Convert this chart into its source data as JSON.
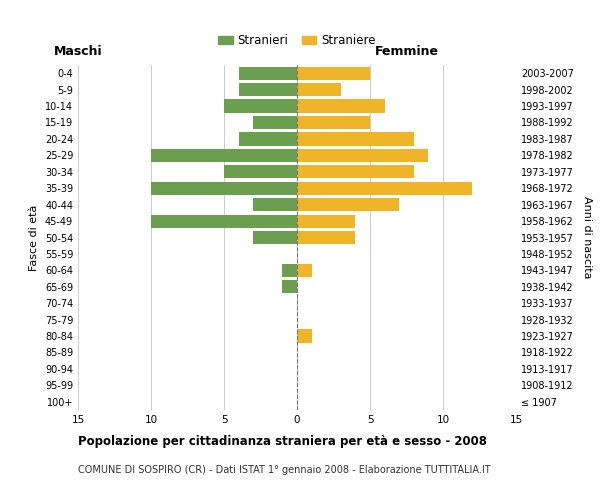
{
  "age_groups": [
    "100+",
    "95-99",
    "90-94",
    "85-89",
    "80-84",
    "75-79",
    "70-74",
    "65-69",
    "60-64",
    "55-59",
    "50-54",
    "45-49",
    "40-44",
    "35-39",
    "30-34",
    "25-29",
    "20-24",
    "15-19",
    "10-14",
    "5-9",
    "0-4"
  ],
  "birth_years": [
    "≤ 1907",
    "1908-1912",
    "1913-1917",
    "1918-1922",
    "1923-1927",
    "1928-1932",
    "1933-1937",
    "1938-1942",
    "1943-1947",
    "1948-1952",
    "1953-1957",
    "1958-1962",
    "1963-1967",
    "1968-1972",
    "1973-1977",
    "1978-1982",
    "1983-1987",
    "1988-1992",
    "1993-1997",
    "1998-2002",
    "2003-2007"
  ],
  "maschi": [
    0,
    0,
    0,
    0,
    0,
    0,
    0,
    1,
    1,
    0,
    3,
    10,
    3,
    10,
    5,
    10,
    4,
    3,
    5,
    4,
    4
  ],
  "femmine": [
    0,
    0,
    0,
    0,
    1,
    0,
    0,
    0,
    1,
    0,
    4,
    4,
    7,
    12,
    8,
    9,
    8,
    5,
    6,
    3,
    5
  ],
  "color_maschi": "#6b9e4e",
  "color_femmine": "#f0b429",
  "title": "Popolazione per cittadinanza straniera per età e sesso - 2008",
  "subtitle": "COMUNE DI SOSPIRO (CR) - Dati ISTAT 1° gennaio 2008 - Elaborazione TUTTITALIA.IT",
  "xlabel_left": "Maschi",
  "xlabel_right": "Femmine",
  "ylabel_left": "Fasce di età",
  "ylabel_right": "Anni di nascita",
  "legend_maschi": "Stranieri",
  "legend_femmine": "Straniere",
  "xlim": 15,
  "background_color": "#ffffff",
  "grid_color": "#cccccc"
}
